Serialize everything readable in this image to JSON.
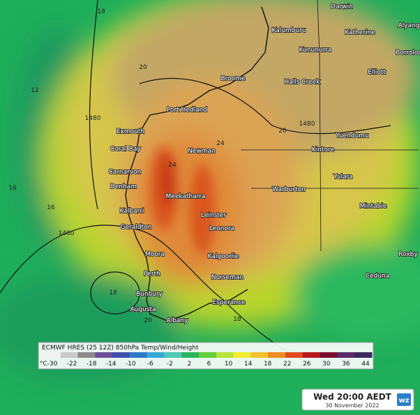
{
  "map": {
    "places": [
      "Darwin",
      "Katherine",
      "Alyang",
      "Kalumburu",
      "Kununurra",
      "Borroloo",
      "Elliott",
      "Broome",
      "Halls Creek",
      "Port Hedland",
      "Exmouth",
      "Yuendumu",
      "Coral Bay",
      "Newman",
      "Kintore",
      "Carnarvon",
      "Yulara",
      "Denham",
      "Warburton",
      "Meekatharra",
      "Mintabie",
      "Kalbarri",
      "Leinster",
      "Geraldton",
      "Leonora",
      "Moora",
      "Kalgoorlie",
      "Roxby",
      "Perth",
      "Norseman",
      "Ceduna",
      "Bunbury",
      "Esperance",
      "Augusta",
      "Albany"
    ],
    "contour_labels": [
      "18",
      "20",
      "1480",
      "1480",
      "20",
      "24",
      "24",
      "16",
      "12",
      "1460",
      "18",
      "16",
      "18",
      "20"
    ]
  },
  "legend": {
    "title": "ECMWF HRES (25 12Z) 850hPa Temp/Wind/Height",
    "unit": "°C",
    "ticks": [
      -30,
      -22,
      -18,
      -14,
      -10,
      -6,
      -2,
      2,
      6,
      10,
      14,
      18,
      22,
      26,
      30,
      36,
      44
    ]
  },
  "timestamp": {
    "time": "Wed 20:00 AEDT",
    "date": "30 November 2022",
    "logo": "wz"
  }
}
